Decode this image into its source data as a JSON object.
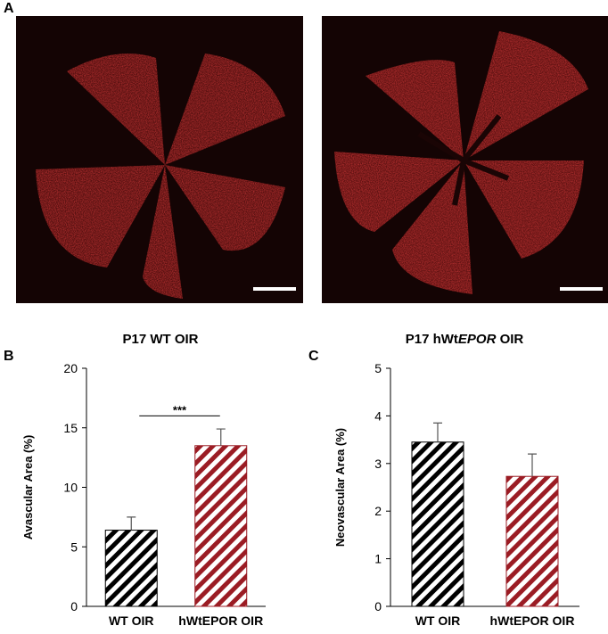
{
  "figure": {
    "panel_labels": [
      "A",
      "B",
      "C"
    ],
    "images": [
      {
        "caption": [
          "P17 WT OIR"
        ]
      },
      {
        "caption": [
          "P17 hWt",
          "EPOR",
          " OIR"
        ]
      }
    ]
  },
  "chart_data": [
    {
      "type": "bar",
      "ylabel": "Avascular Area (%)",
      "categories": [
        "WT OIR",
        "hWtEPOR OIR"
      ],
      "values": [
        6.4,
        13.5
      ],
      "errors": [
        1.1,
        1.4
      ],
      "colors": [
        "#000000",
        "#9b1c24"
      ],
      "ylim": [
        0,
        20
      ],
      "yticks": [
        0,
        5,
        10,
        15,
        20
      ],
      "significance": {
        "label": "***",
        "from": 0,
        "to": 1,
        "y": 16
      }
    },
    {
      "type": "bar",
      "ylabel": "Neovascular Area (%)",
      "categories": [
        "WT OIR",
        "hWtEPOR OIR"
      ],
      "values": [
        3.45,
        2.73
      ],
      "errors": [
        0.4,
        0.47
      ],
      "colors": [
        "#000000",
        "#9b1c24"
      ],
      "ylim": [
        0,
        5
      ],
      "yticks": [
        0,
        1,
        2,
        3,
        4,
        5
      ]
    }
  ]
}
